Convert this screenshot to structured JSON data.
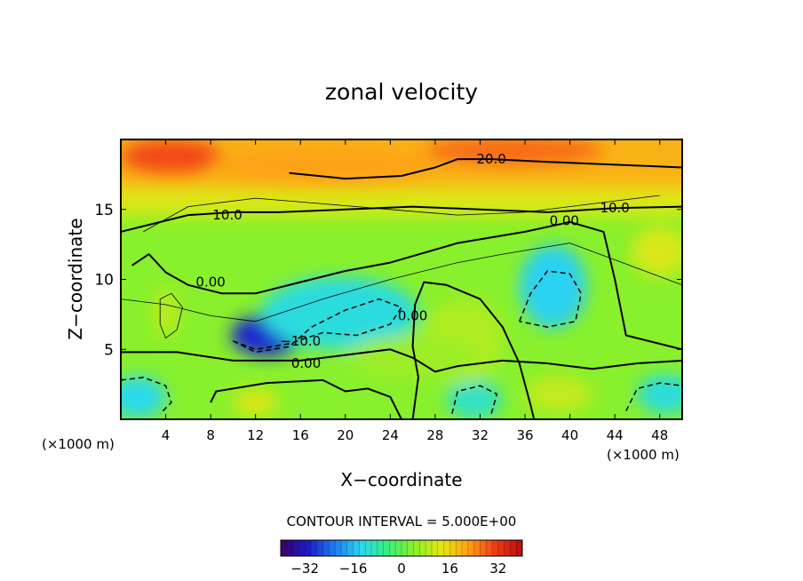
{
  "chart_data": {
    "type": "heatmap",
    "title": "zonal velocity",
    "xlabel": "X−coordinate",
    "ylabel": "Z−coordinate",
    "x_unit_left": "(×1000 m)",
    "x_unit_right": "(×1000 m)",
    "xlim": [
      0,
      50
    ],
    "ylim": [
      0,
      20
    ],
    "x_ticks": [
      4,
      8,
      12,
      16,
      20,
      24,
      28,
      32,
      36,
      40,
      44,
      48
    ],
    "y_ticks": [
      5,
      10,
      15
    ],
    "contour_interval_text": "CONTOUR INTERVAL = 5.000E+00",
    "colorbar": {
      "range": [
        -40,
        40
      ],
      "ticks": [
        -32,
        -16,
        0,
        16,
        32
      ],
      "colors": [
        "#3a006a",
        "#1c1cc8",
        "#1e7af0",
        "#2ad8f0",
        "#3af07a",
        "#8cf028",
        "#e6e614",
        "#ffa014",
        "#f03c14",
        "#b40a0a"
      ]
    },
    "contour_labels": [
      {
        "text": "20.0",
        "x": 33.0,
        "y": 18.6
      },
      {
        "text": "10.0",
        "x": 9.5,
        "y": 14.6
      },
      {
        "text": "10.0",
        "x": 44.0,
        "y": 15.1
      },
      {
        "text": "0.00",
        "x": 39.5,
        "y": 14.2
      },
      {
        "text": "0.00",
        "x": 8.0,
        "y": 9.8
      },
      {
        "text": "−10.0",
        "x": 16.0,
        "y": 5.6
      },
      {
        "text": "0.00",
        "x": 16.5,
        "y": 4.0
      },
      {
        "text": "0.00",
        "x": 26.0,
        "y": 7.4
      }
    ],
    "field_blobs": [
      {
        "x": 13.0,
        "y": 6.0,
        "v": -30,
        "rx": 3.2,
        "ry": 1.5
      },
      {
        "x": 19.5,
        "y": 7.6,
        "v": -12,
        "rx": 7.0,
        "ry": 2.6
      },
      {
        "x": 38.5,
        "y": 9.5,
        "v": -14,
        "rx": 3.0,
        "ry": 3.0
      },
      {
        "x": 31.5,
        "y": 1.4,
        "v": -10,
        "rx": 2.5,
        "ry": 1.4
      },
      {
        "x": 1.5,
        "y": 1.6,
        "v": -13,
        "rx": 2.5,
        "ry": 1.5
      },
      {
        "x": 48.5,
        "y": 1.8,
        "v": -12,
        "rx": 2.5,
        "ry": 1.4
      },
      {
        "x": 12.0,
        "y": 1.2,
        "v": 12,
        "rx": 2.0,
        "ry": 1.0
      },
      {
        "x": 4.0,
        "y": 7.6,
        "v": 9,
        "rx": 1.2,
        "ry": 1.8
      },
      {
        "x": 30.5,
        "y": 5.6,
        "v": 8,
        "rx": 3.5,
        "ry": 3.0
      },
      {
        "x": 39.0,
        "y": 1.8,
        "v": 10,
        "rx": 3.0,
        "ry": 1.3
      },
      {
        "x": 26.0,
        "y": 4.4,
        "v": 6,
        "rx": 6.0,
        "ry": 1.6
      },
      {
        "x": 48.0,
        "y": 12.0,
        "v": 12,
        "rx": 2.5,
        "ry": 1.8
      },
      {
        "x": 4.5,
        "y": 18.8,
        "v": 30,
        "rx": 4.5,
        "ry": 1.2
      },
      {
        "x": 35.0,
        "y": 19.2,
        "v": 27,
        "rx": 8.0,
        "ry": 1.0
      },
      {
        "x": 18.0,
        "y": 18.2,
        "v": 22,
        "rx": 10.0,
        "ry": 1.2
      }
    ]
  }
}
